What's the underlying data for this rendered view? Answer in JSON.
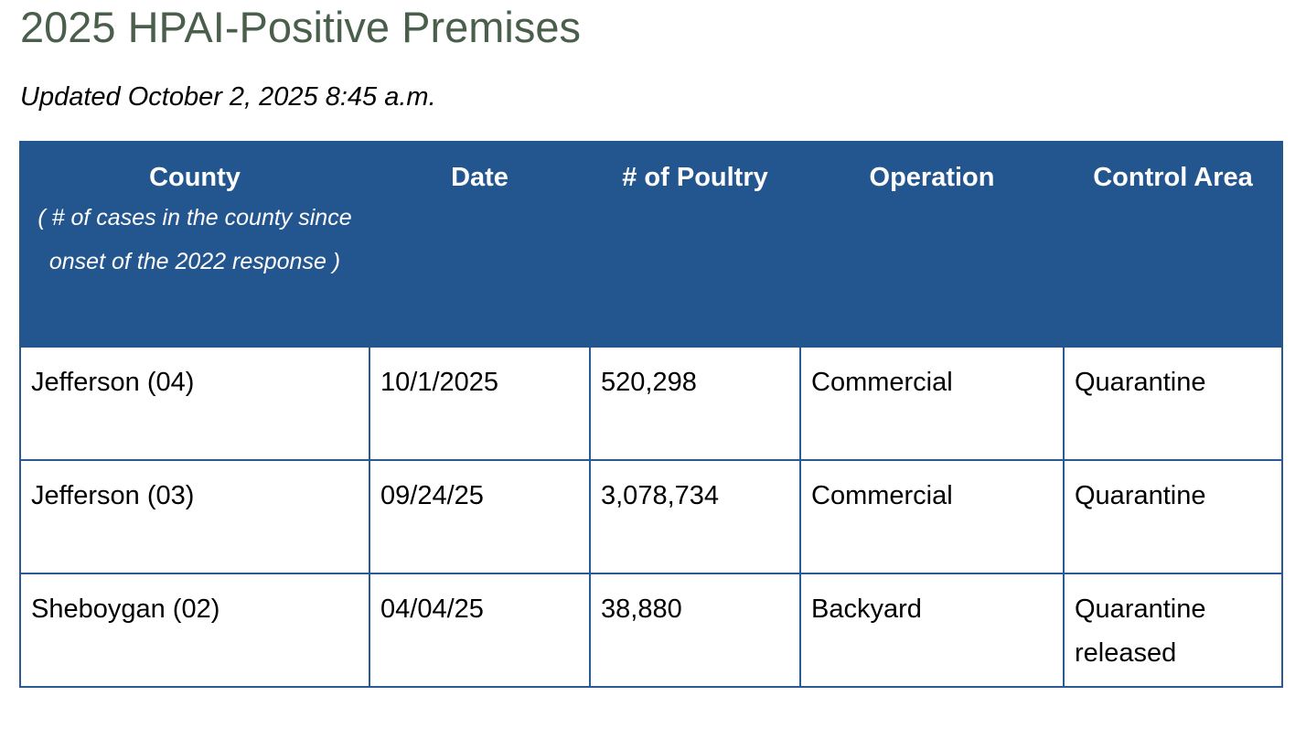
{
  "page": {
    "title": "2025 HPAI-Positive Premises",
    "updated": "Updated October 2, 2025 8:45 a.m."
  },
  "table": {
    "headers": {
      "county": "County",
      "county_note": "( # of cases in the county since onset of the 2022 response )",
      "date": "Date",
      "poultry": "# of Poultry",
      "operation": "Operation",
      "control_area": "Control Area"
    },
    "rows": [
      {
        "county": "Jefferson (04)",
        "date": "10/1/2025",
        "poultry": "520,298",
        "operation": "Commercial",
        "control_area": "Quarantine"
      },
      {
        "county": "Jefferson (03)",
        "date": "09/24/25",
        "poultry": "3,078,734",
        "operation": "Commercial",
        "control_area": "Quarantine"
      },
      {
        "county": "Sheboygan (02)",
        "date": "04/04/25",
        "poultry": "38,880",
        "operation": "Backyard",
        "control_area": "Quarantine released"
      }
    ]
  },
  "colors": {
    "title": "#4a5e4c",
    "header_background": "#23568f",
    "header_text": "#ffffff",
    "cell_border": "#2a5a94"
  }
}
